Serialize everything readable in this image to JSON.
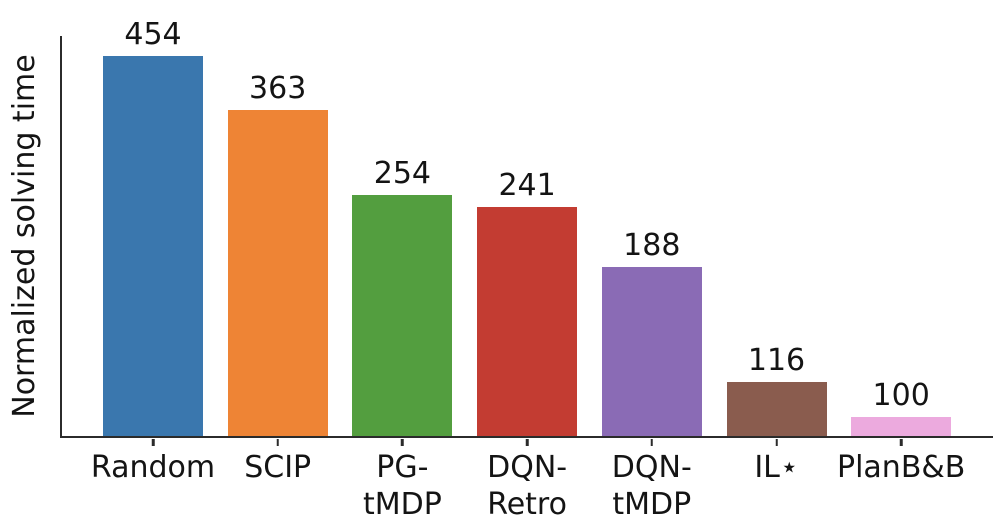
{
  "chart_data": {
    "type": "bar",
    "title": "",
    "xlabel": "",
    "ylabel": "Normalized solving time",
    "categories": [
      "Random",
      "SCIP",
      "PG-\ntMDP",
      "DQN-\nRetro",
      "DQN-\ntMDP",
      "IL⋆",
      "PlanB&B"
    ],
    "values": [
      454,
      363,
      254,
      241,
      188,
      116,
      100
    ],
    "bar_colors": [
      "#3a77ae",
      "#ee8435",
      "#539e3f",
      "#c33c32",
      "#8a6bb5",
      "#8a5c4e",
      "#ecaade"
    ],
    "yscale": "log",
    "ylim": [
      92.5,
      494
    ],
    "grid": false,
    "legend": false,
    "value_labels_shown": true,
    "axis_color": "#2b2b2b",
    "text_color": "#141414",
    "background_color": "#ffffff"
  }
}
